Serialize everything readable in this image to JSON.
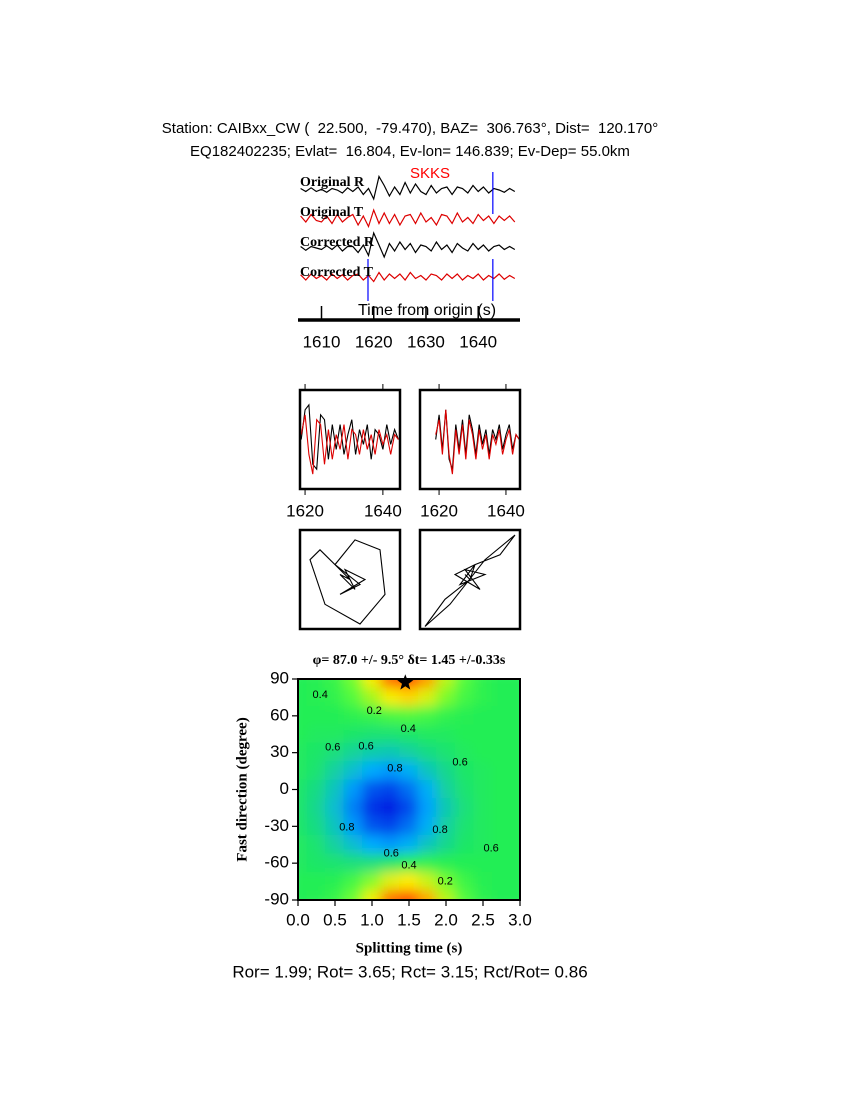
{
  "header": {
    "line1": "Station: CAIBxx_CW (  22.500,  -79.470), BAZ=  306.763°, Dist=  120.170°",
    "line2": "EQ182402235; Evlat=  16.804, Ev-lon= 146.839; Ev-Dep= 55.0km"
  },
  "footer": "Ror= 1.99; Rot= 3.65; Rct= 3.15; Rct/Rot= 0.86",
  "chart_data": [
    {
      "type": "traces",
      "xlabel": "Time from origin (s)",
      "phase": "SKKS",
      "phase_color": "#ff0000",
      "pick_color": "#0000ff",
      "x": [
        1606,
        1607,
        1608,
        1609,
        1610,
        1611,
        1612,
        1613,
        1614,
        1615,
        1616,
        1617,
        1618,
        1619,
        1620,
        1621,
        1622,
        1623,
        1624,
        1625,
        1626,
        1627,
        1628,
        1629,
        1630,
        1631,
        1632,
        1633,
        1634,
        1635,
        1636,
        1637,
        1638,
        1639,
        1640,
        1641,
        1642,
        1643,
        1644,
        1645,
        1646,
        1647
      ],
      "xlim": [
        1605.5,
        1648
      ],
      "xticks": [
        1610,
        1620,
        1630,
        1640
      ],
      "ylim": [
        -1,
        1
      ],
      "series": [
        {
          "name": "Original R",
          "color": "#000000",
          "picks": [
            1642.8
          ],
          "values": [
            0.1,
            -0.1,
            0.15,
            -0.1,
            0.05,
            -0.15,
            0.1,
            0.0,
            -0.2,
            0.15,
            -0.1,
            0.2,
            -0.3,
            0.1,
            -0.6,
            0.9,
            0.3,
            -0.4,
            0.2,
            -0.3,
            0.5,
            -0.2,
            0.4,
            -0.1,
            -0.3,
            0.3,
            -0.2,
            0.1,
            0.2,
            -0.3,
            0.2,
            0.1,
            -0.2,
            0.3,
            -0.1,
            0.2,
            -0.2,
            0.1,
            0.0,
            -0.15,
            0.1,
            -0.1
          ]
        },
        {
          "name": "Original T",
          "color": "#dd0000",
          "picks": [],
          "values": [
            0.2,
            -0.2,
            0.3,
            -0.1,
            -0.2,
            0.2,
            -0.3,
            0.3,
            -0.2,
            0.1,
            0.3,
            -0.4,
            0.2,
            -0.5,
            0.6,
            -0.3,
            0.4,
            -0.3,
            0.3,
            -0.4,
            0.2,
            0.3,
            -0.3,
            0.4,
            -0.2,
            0.1,
            -0.4,
            0.3,
            0.2,
            -0.3,
            0.4,
            -0.2,
            0.1,
            -0.3,
            0.3,
            -0.1,
            0.2,
            -0.3,
            0.2,
            -0.1,
            0.2,
            -0.2
          ]
        },
        {
          "name": "Corrected R",
          "color": "#000000",
          "picks": [],
          "values": [
            0.1,
            -0.15,
            0.1,
            0.0,
            -0.1,
            0.15,
            -0.1,
            0.2,
            -0.2,
            0.1,
            0.1,
            -0.3,
            0.2,
            -0.5,
            1.0,
            0.2,
            -0.6,
            0.3,
            -0.2,
            0.4,
            -0.1,
            0.3,
            -0.3,
            0.2,
            0.1,
            -0.2,
            0.4,
            -0.1,
            0.2,
            -0.3,
            0.3,
            0.0,
            -0.2,
            0.3,
            -0.1,
            0.2,
            -0.2,
            0.1,
            0.2,
            -0.1,
            0.1,
            -0.1
          ]
        },
        {
          "name": "Corrected T",
          "color": "#dd0000",
          "picks": [
            1618.9,
            1642.8
          ],
          "values": [
            0.15,
            -0.2,
            0.2,
            -0.1,
            0.1,
            -0.2,
            0.2,
            -0.1,
            0.15,
            -0.2,
            0.1,
            0.2,
            -0.2,
            0.1,
            -0.3,
            0.3,
            -0.2,
            0.2,
            -0.1,
            0.2,
            -0.2,
            0.3,
            -0.1,
            0.1,
            -0.2,
            0.2,
            0.1,
            -0.2,
            0.2,
            -0.1,
            0.2,
            -0.2,
            0.1,
            -0.1,
            0.2,
            -0.2,
            0.1,
            -0.1,
            0.2,
            -0.15,
            0.1,
            -0.1
          ]
        }
      ]
    },
    {
      "type": "line",
      "x": [
        1619,
        1620,
        1621,
        1622,
        1623,
        1624,
        1625,
        1626,
        1627,
        1628,
        1629,
        1630,
        1631,
        1632,
        1633,
        1634,
        1635,
        1636,
        1637,
        1638,
        1639,
        1640,
        1641,
        1642,
        1643,
        1644
      ],
      "xlim": [
        1618.7,
        1644.4
      ],
      "xticks": [
        1620,
        1640
      ],
      "ylim": [
        -1,
        1
      ],
      "series": [
        {
          "color": "#000000",
          "values": [
            0.0,
            0.6,
            0.7,
            -0.5,
            -0.6,
            0.5,
            0.4,
            -0.4,
            0.3,
            -0.2,
            0.3,
            -0.3,
            0.1,
            0.4,
            -0.3,
            0.2,
            -0.1,
            0.3,
            -0.4,
            0.2,
            0.1,
            -0.2,
            0.3,
            -0.1,
            0.2,
            0.0
          ]
        },
        {
          "color": "#dd0000",
          "values": [
            0.1,
            0.5,
            -0.3,
            -0.7,
            0.4,
            0.3,
            -0.5,
            0.2,
            -0.4,
            0.1,
            -0.2,
            0.3,
            -0.4,
            0.2,
            0.1,
            -0.3,
            0.2,
            -0.2,
            0.1,
            -0.3,
            0.2,
            -0.1,
            0.1,
            -0.3,
            0.1,
            0.0
          ]
        }
      ]
    },
    {
      "type": "line",
      "x": [
        1619,
        1620,
        1621,
        1622,
        1623,
        1624,
        1625,
        1626,
        1627,
        1628,
        1629,
        1630,
        1631,
        1632,
        1633,
        1634,
        1635,
        1636,
        1637,
        1638,
        1639,
        1640,
        1641,
        1642,
        1643,
        1644
      ],
      "xlim": [
        1614.3,
        1644.2
      ],
      "xticks": [
        1620,
        1640
      ],
      "ylim": [
        -1,
        1
      ],
      "series": [
        {
          "color": "#000000",
          "values": [
            0.0,
            0.5,
            -0.2,
            0.6,
            -0.4,
            -0.6,
            0.3,
            -0.2,
            0.4,
            -0.3,
            0.5,
            0.2,
            -0.3,
            0.3,
            -0.1,
            0.2,
            -0.3,
            0.2,
            0.0,
            0.3,
            -0.2,
            0.1,
            0.3,
            -0.2,
            0.1,
            0.0
          ]
        },
        {
          "color": "#dd0000",
          "values": [
            0.1,
            0.4,
            -0.3,
            0.6,
            -0.3,
            -0.7,
            0.2,
            -0.3,
            0.3,
            -0.4,
            0.4,
            0.1,
            -0.4,
            0.2,
            -0.2,
            0.1,
            -0.4,
            0.1,
            -0.1,
            0.2,
            -0.3,
            0.0,
            0.2,
            -0.3,
            0.1,
            0.0
          ]
        }
      ]
    },
    {
      "type": "line",
      "xlim": [
        -1,
        1
      ],
      "ylim": [
        -1,
        1
      ],
      "series": [
        {
          "color": "#000000",
          "x": [
            0.0,
            -0.6,
            -0.8,
            -0.5,
            0.2,
            0.7,
            0.6,
            0.1,
            -0.3,
            0.2,
            -0.2,
            0.3,
            -0.1,
            0.1,
            -0.2,
            0.0
          ],
          "values": [
            0.0,
            0.6,
            0.4,
            -0.5,
            -0.9,
            -0.3,
            0.6,
            0.8,
            0.3,
            -0.1,
            -0.3,
            0.0,
            0.2,
            -0.2,
            0.1,
            0.0
          ]
        }
      ]
    },
    {
      "type": "line",
      "xlim": [
        -1,
        1
      ],
      "ylim": [
        -1,
        1
      ],
      "series": [
        {
          "color": "#000000",
          "x": [
            0.0,
            -0.5,
            -0.9,
            -0.4,
            0.3,
            0.9,
            0.6,
            0.1,
            -0.3,
            0.2,
            -0.1,
            0.3,
            -0.2,
            0.1,
            0.0,
            -0.1
          ],
          "values": [
            0.0,
            -0.4,
            -0.95,
            -0.5,
            0.4,
            0.9,
            0.5,
            0.3,
            0.1,
            -0.2,
            0.2,
            0.1,
            -0.1,
            0.3,
            0.0,
            0.1
          ]
        }
      ]
    },
    {
      "type": "heatmap",
      "title": "φ= 87.0 +/- 9.5° δt= 1.45 +/-0.33s",
      "xlabel": "Splitting time (s)",
      "ylabel": "Fast direction (degree)",
      "xlim": [
        0,
        3
      ],
      "ylim": [
        -90,
        90
      ],
      "xticks": [
        {
          "value": 0,
          "label": "0.0"
        },
        0.5,
        {
          "value": 1,
          "label": "1.0"
        },
        1.5,
        {
          "value": 2,
          "label": "2.0"
        },
        2.5,
        {
          "value": 3,
          "label": "3.0"
        }
      ],
      "yticks": [
        -90,
        -60,
        -30,
        0,
        30,
        60,
        90
      ],
      "x": [
        0,
        0.25,
        0.5,
        0.75,
        1,
        1.25,
        1.5,
        1.75,
        2,
        2.25,
        2.5,
        2.75,
        3
      ],
      "y": [
        90,
        75,
        60,
        45,
        30,
        15,
        0,
        -15,
        -30,
        -45,
        -60,
        -75,
        -90
      ],
      "colorscale": [
        [
          0,
          "#ff0000"
        ],
        [
          0.3,
          "#ffee00"
        ],
        [
          0.5,
          "#66ff33"
        ],
        [
          0.62,
          "#22ee55"
        ],
        [
          0.8,
          "#00aaff"
        ],
        [
          1,
          "#0000dd"
        ]
      ],
      "values": [
        [
          0.62,
          0.61,
          0.58,
          0.48,
          0.31,
          0.13,
          0.08,
          0.2,
          0.39,
          0.53,
          0.6,
          0.62,
          0.62
        ],
        [
          0.62,
          0.61,
          0.59,
          0.53,
          0.42,
          0.31,
          0.27,
          0.35,
          0.47,
          0.56,
          0.6,
          0.62,
          0.62
        ],
        [
          0.62,
          0.62,
          0.62,
          0.6,
          0.58,
          0.55,
          0.54,
          0.56,
          0.59,
          0.61,
          0.62,
          0.62,
          0.62
        ],
        [
          0.62,
          0.63,
          0.63,
          0.64,
          0.65,
          0.65,
          0.64,
          0.63,
          0.63,
          0.62,
          0.62,
          0.62,
          0.62
        ],
        [
          0.63,
          0.64,
          0.66,
          0.69,
          0.71,
          0.72,
          0.7,
          0.67,
          0.65,
          0.63,
          0.62,
          0.62,
          0.62
        ],
        [
          0.63,
          0.65,
          0.7,
          0.75,
          0.8,
          0.82,
          0.79,
          0.73,
          0.68,
          0.64,
          0.63,
          0.62,
          0.62
        ],
        [
          0.64,
          0.67,
          0.73,
          0.82,
          0.9,
          0.92,
          0.87,
          0.79,
          0.7,
          0.65,
          0.63,
          0.62,
          0.62
        ],
        [
          0.64,
          0.68,
          0.75,
          0.85,
          0.94,
          0.97,
          0.91,
          0.81,
          0.72,
          0.66,
          0.63,
          0.62,
          0.62
        ],
        [
          0.64,
          0.67,
          0.73,
          0.82,
          0.9,
          0.92,
          0.87,
          0.79,
          0.7,
          0.65,
          0.63,
          0.62,
          0.62
        ],
        [
          0.63,
          0.65,
          0.7,
          0.75,
          0.8,
          0.82,
          0.79,
          0.73,
          0.68,
          0.64,
          0.63,
          0.62,
          0.62
        ],
        [
          0.63,
          0.64,
          0.65,
          0.66,
          0.66,
          0.64,
          0.61,
          0.6,
          0.61,
          0.62,
          0.62,
          0.62,
          0.62
        ],
        [
          0.62,
          0.62,
          0.61,
          0.56,
          0.46,
          0.34,
          0.3,
          0.37,
          0.48,
          0.57,
          0.61,
          0.62,
          0.62
        ],
        [
          0.62,
          0.61,
          0.58,
          0.49,
          0.32,
          0.14,
          0.09,
          0.21,
          0.39,
          0.53,
          0.6,
          0.62,
          0.62
        ]
      ],
      "annotations": [
        {
          "text": "0.4",
          "x": 0.3,
          "y": 77
        },
        {
          "text": "0.2",
          "x": 1.03,
          "y": 64
        },
        {
          "text": "0.4",
          "x": 1.49,
          "y": 49
        },
        {
          "text": "0.6",
          "x": 0.47,
          "y": 34
        },
        {
          "text": "0.6",
          "x": 0.92,
          "y": 35
        },
        {
          "text": "0.8",
          "x": 1.31,
          "y": 17
        },
        {
          "text": "0.6",
          "x": 2.19,
          "y": 22
        },
        {
          "text": "0.8",
          "x": 0.66,
          "y": -31
        },
        {
          "text": "0.8",
          "x": 1.92,
          "y": -33
        },
        {
          "text": "0.6",
          "x": 1.26,
          "y": -52
        },
        {
          "text": "0.4",
          "x": 1.5,
          "y": -62
        },
        {
          "text": "0.6",
          "x": 2.61,
          "y": -48
        },
        {
          "text": "0.2",
          "x": 1.99,
          "y": -75
        }
      ],
      "marker": {
        "x": 1.45,
        "y": 87,
        "color": "#000000"
      }
    }
  ]
}
